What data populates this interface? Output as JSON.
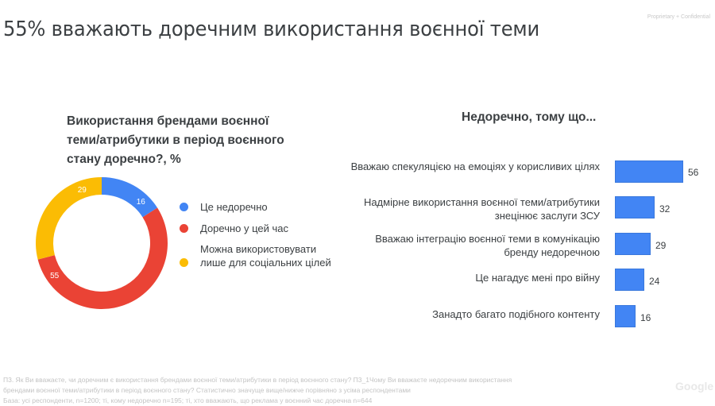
{
  "header": {
    "title": "55% вважають доречним використання воєнної теми",
    "confidential": "Proprietary + Confidential"
  },
  "left_panel": {
    "title": "Використання брендами воєнної теми/атрибутики в період воєнного стану доречно?, %",
    "legend": [
      {
        "label": "Це недоречно",
        "color": "#4285f4"
      },
      {
        "label": "Доречно у цей час",
        "color": "#ea4335"
      },
      {
        "label": "Можна використовувати лише для соціальних цілей",
        "color": "#fbbc04"
      }
    ],
    "segment_labels": [
      "16",
      "55",
      "29"
    ]
  },
  "right_panel": {
    "title": "Недоречно, тому що...",
    "bars": [
      {
        "label": "Вважаю спекуляцією на емоціях у корисливих цілях",
        "value": "56"
      },
      {
        "label": "Надмірне використання воєнної теми/атрибутики знецінює заслуги ЗСУ",
        "value": "32"
      },
      {
        "label": "Вважаю інтеграцію воєнної теми в комунікацію бренду недоречною",
        "value": "29"
      },
      {
        "label": "Це нагадує мені про війну",
        "value": "24"
      },
      {
        "label": "Занадто багато подібного контенту",
        "value": "16"
      }
    ]
  },
  "footnote": {
    "line1": "П3. Як Ви вважаєте, чи доречним є використання брендами воєнної теми/атрибутики в період воєнного стану? П3_1Чому Ви вважаєте недоречним використання",
    "line2": "брендами воєнної теми/атрибутики в період воєнного стану? Статистично значуще вище/нижче порівняно з усіма респондентами",
    "line3": "База: усі респонденти, n=1200; ті, кому недоречно n=195; ті, хто вважають, що реклама у воєнний час доречна n=644"
  },
  "logo": "Google",
  "chart_data": [
    {
      "type": "pie",
      "title": "Використання брендами воєнної теми/атрибутики в період воєнного стану доречно?, %",
      "categories": [
        "Це недоречно",
        "Доречно у цей час",
        "Можна використовувати лише для соціальних цілей"
      ],
      "values": [
        16,
        55,
        29
      ],
      "colors": [
        "#4285f4",
        "#ea4335",
        "#fbbc04"
      ],
      "donut": true,
      "legend_position": "right"
    },
    {
      "type": "bar",
      "orientation": "horizontal",
      "title": "Недоречно, тому що...",
      "categories": [
        "Вважаю спекуляцією на емоціях у корисливих цілях",
        "Надмірне використання воєнної теми/атрибутики знецінює заслуги ЗСУ",
        "Вважаю інтеграцію воєнної теми в комунікацію бренду недоречною",
        "Це нагадує мені про війну",
        "Занадто багато подібного контенту"
      ],
      "values": [
        56,
        32,
        29,
        24,
        16
      ],
      "color": "#4285f4",
      "xlabel": "",
      "ylabel": "",
      "grid": false
    }
  ]
}
